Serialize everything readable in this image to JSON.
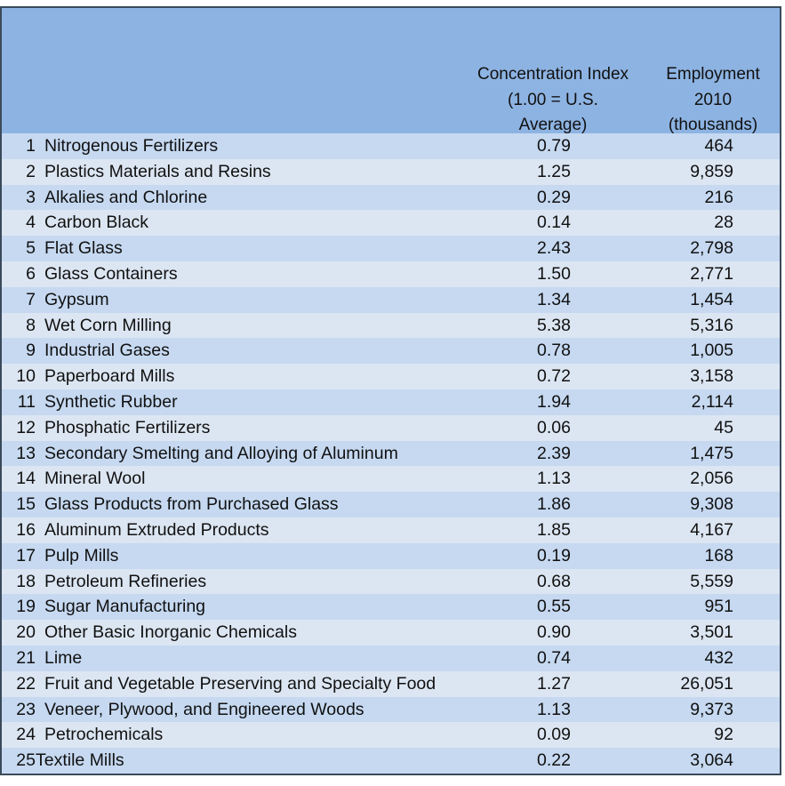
{
  "header": {
    "concentration": "Concentration Index\n(1.00 = U.S.\nAverage)",
    "employment": "Employment\n2010\n(thousands)"
  },
  "rows": [
    {
      "n": "1",
      "name": "Nitrogenous Fertilizers",
      "conc": "0.79",
      "emp": "464"
    },
    {
      "n": "2",
      "name": "Plastics Materials and Resins",
      "conc": "1.25",
      "emp": "9,859"
    },
    {
      "n": "3",
      "name": "Alkalies and Chlorine",
      "conc": "0.29",
      "emp": "216"
    },
    {
      "n": "4",
      "name": "Carbon Black",
      "conc": "0.14",
      "emp": "28"
    },
    {
      "n": "5",
      "name": "Flat Glass",
      "conc": "2.43",
      "emp": "2,798"
    },
    {
      "n": "6",
      "name": "Glass Containers",
      "conc": "1.50",
      "emp": "2,771"
    },
    {
      "n": "7",
      "name": "Gypsum",
      "conc": "1.34",
      "emp": "1,454"
    },
    {
      "n": "8",
      "name": "Wet Corn Milling",
      "conc": "5.38",
      "emp": "5,316"
    },
    {
      "n": "9",
      "name": "Industrial Gases",
      "conc": "0.78",
      "emp": "1,005"
    },
    {
      "n": "10",
      "name": "Paperboard Mills",
      "conc": "0.72",
      "emp": "3,158"
    },
    {
      "n": "11",
      "name": "Synthetic Rubber",
      "conc": "1.94",
      "emp": "2,114"
    },
    {
      "n": "12",
      "name": "Phosphatic Fertilizers",
      "conc": "0.06",
      "emp": "45"
    },
    {
      "n": "13",
      "name": "Secondary Smelting and Alloying of Aluminum",
      "conc": "2.39",
      "emp": "1,475"
    },
    {
      "n": "14",
      "name": "Mineral Wool",
      "conc": "1.13",
      "emp": "2,056"
    },
    {
      "n": "15",
      "name": "Glass Products from Purchased Glass",
      "conc": "1.86",
      "emp": "9,308"
    },
    {
      "n": "16",
      "name": "Aluminum Extruded Products",
      "conc": "1.85",
      "emp": "4,167"
    },
    {
      "n": "17",
      "name": "Pulp Mills",
      "conc": "0.19",
      "emp": "168"
    },
    {
      "n": "18",
      "name": "Petroleum Refineries",
      "conc": "0.68",
      "emp": "5,559"
    },
    {
      "n": "19",
      "name": "Sugar Manufacturing",
      "conc": "0.55",
      "emp": "951"
    },
    {
      "n": "20",
      "name": "Other Basic Inorganic Chemicals",
      "conc": "0.90",
      "emp": "3,501"
    },
    {
      "n": "21",
      "name": "Lime",
      "conc": "0.74",
      "emp": "432"
    },
    {
      "n": "22",
      "name": "Fruit and Vegetable Preserving and Specialty Food",
      "conc": "1.27",
      "emp": "26,051"
    },
    {
      "n": "23",
      "name": "Veneer, Plywood, and Engineered Woods",
      "conc": "1.13",
      "emp": "9,373"
    },
    {
      "n": "24",
      "name": "Petrochemicals",
      "conc": "0.09",
      "emp": "92"
    },
    {
      "n": "25",
      "name": "Textile Mills",
      "conc": "0.22",
      "emp": "3,064"
    }
  ]
}
